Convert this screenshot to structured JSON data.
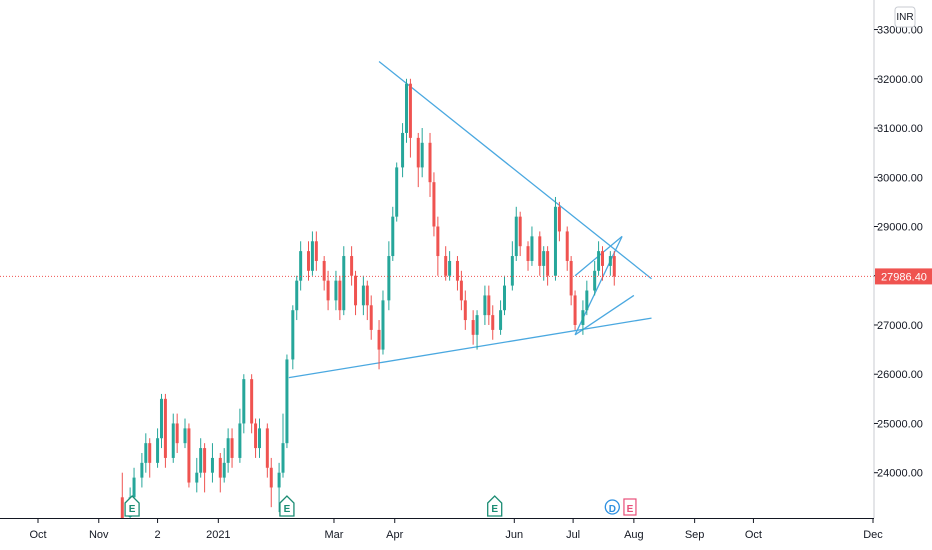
{
  "chart_data": {
    "type": "candlestick",
    "currency": "INR",
    "last_price": "27986.40",
    "y_ticks": [
      "33000.00",
      "32000.00",
      "31000.00",
      "30000.00",
      "29000.00",
      "28000.00",
      "27000.00",
      "26000.00",
      "25000.00",
      "24000.00"
    ],
    "y_tick_values": [
      33000,
      32000,
      31000,
      30000,
      29000,
      28000,
      27000,
      26000,
      25000,
      24000
    ],
    "ylim": [
      23080,
      33600
    ],
    "x_ticks": [
      {
        "label": "Oct",
        "date": "2020-10-01"
      },
      {
        "label": "Nov",
        "date": "2020-11-01"
      },
      {
        "label": "2",
        "date": "2020-12-01"
      },
      {
        "label": "2021",
        "date": "2021-01-01"
      },
      {
        "label": "Mar",
        "date": "2021-03-01"
      },
      {
        "label": "Apr",
        "date": "2021-04-01"
      },
      {
        "label": "Jun",
        "date": "2021-06-01"
      },
      {
        "label": "Jul",
        "date": "2021-07-01"
      },
      {
        "label": "Aug",
        "date": "2021-08-01"
      },
      {
        "label": "Sep",
        "date": "2021-09-01"
      },
      {
        "label": "Oct",
        "date": "2021-10-01"
      },
      {
        "label": "Dec",
        "date": "2021-12-01"
      }
    ],
    "colors": {
      "up": "#26a69a",
      "down": "#ef5350",
      "trendline": "#4aa8e0",
      "last_price": "#ef5350",
      "event_earnings": "#1b8c73",
      "event_dividend": "#2c8fe0",
      "event_upcoming": "#e84f7a"
    },
    "candles": [
      [
        "2020-11-13",
        23500,
        23000,
        24000,
        23000
      ],
      [
        "2020-11-17",
        23100,
        23500,
        23700,
        23050
      ],
      [
        "2020-11-19",
        23500,
        23900,
        24100,
        23300
      ],
      [
        "2020-11-23",
        23900,
        24200,
        24400,
        23700
      ],
      [
        "2020-11-25",
        24200,
        24600,
        24800,
        24000
      ],
      [
        "2020-11-27",
        24600,
        24200,
        24700,
        23900
      ],
      [
        "2020-12-01",
        24200,
        24700,
        24900,
        24100
      ],
      [
        "2020-12-03",
        24700,
        25500,
        25600,
        24500
      ],
      [
        "2020-12-05",
        25500,
        24300,
        25600,
        24100
      ],
      [
        "2020-12-09",
        24300,
        25000,
        25200,
        24200
      ],
      [
        "2020-12-11",
        25000,
        24600,
        25200,
        24400
      ],
      [
        "2020-12-15",
        24600,
        24900,
        25100,
        24500
      ],
      [
        "2020-12-17",
        24900,
        23800,
        25000,
        23700
      ],
      [
        "2020-12-21",
        23800,
        24000,
        24300,
        23600
      ],
      [
        "2020-12-23",
        24000,
        24500,
        24700,
        23900
      ],
      [
        "2020-12-25",
        24500,
        24000,
        24600,
        23600
      ],
      [
        "2020-12-29",
        24000,
        24300,
        24600,
        23800
      ],
      [
        "2021-01-02",
        24300,
        23900,
        24400,
        23600
      ],
      [
        "2021-01-04",
        23900,
        24200,
        24500,
        23800
      ],
      [
        "2021-01-06",
        24200,
        24700,
        24900,
        24000
      ],
      [
        "2021-01-08",
        24700,
        24300,
        24900,
        24100
      ],
      [
        "2021-01-12",
        24300,
        25000,
        25300,
        24200
      ],
      [
        "2021-01-14",
        25000,
        25900,
        26000,
        24800
      ],
      [
        "2021-01-18",
        25900,
        25000,
        26000,
        24800
      ],
      [
        "2021-01-20",
        25000,
        24500,
        25100,
        24300
      ],
      [
        "2021-01-22",
        24500,
        24900,
        25100,
        24300
      ],
      [
        "2021-01-26",
        24900,
        24100,
        25000,
        23900
      ],
      [
        "2021-01-28",
        24100,
        23700,
        24300,
        23300
      ],
      [
        "2021-02-01",
        23700,
        24000,
        24200,
        23200
      ],
      [
        "2021-02-03",
        24000,
        24600,
        25200,
        23900
      ],
      [
        "2021-02-05",
        24600,
        26300,
        26400,
        24500
      ],
      [
        "2021-02-08",
        26300,
        27300,
        27400,
        26100
      ],
      [
        "2021-02-10",
        27300,
        27900,
        28000,
        27100
      ],
      [
        "2021-02-12",
        27900,
        28500,
        28700,
        27700
      ],
      [
        "2021-02-16",
        28500,
        28100,
        28700,
        27900
      ],
      [
        "2021-02-18",
        28100,
        28700,
        28900,
        28000
      ],
      [
        "2021-02-20",
        28700,
        28300,
        28900,
        28100
      ],
      [
        "2021-02-24",
        28300,
        27900,
        28400,
        27700
      ],
      [
        "2021-02-26",
        27900,
        27500,
        28100,
        27300
      ],
      [
        "2021-03-02",
        27500,
        27900,
        28100,
        27300
      ],
      [
        "2021-03-04",
        27900,
        27300,
        28000,
        27100
      ],
      [
        "2021-03-06",
        27300,
        28400,
        28600,
        27200
      ],
      [
        "2021-03-10",
        28400,
        28000,
        28600,
        27800
      ],
      [
        "2021-03-12",
        28000,
        27400,
        28100,
        27200
      ],
      [
        "2021-03-16",
        27400,
        27800,
        28000,
        27200
      ],
      [
        "2021-03-18",
        27800,
        27400,
        27900,
        27100
      ],
      [
        "2021-03-20",
        27400,
        26900,
        27600,
        26700
      ],
      [
        "2021-03-24",
        26900,
        26500,
        27100,
        26100
      ],
      [
        "2021-03-26",
        26500,
        27500,
        27700,
        26400
      ],
      [
        "2021-03-29",
        27500,
        28400,
        28700,
        27300
      ],
      [
        "2021-03-31",
        28400,
        29200,
        29400,
        28300
      ],
      [
        "2021-04-02",
        29200,
        30200,
        30300,
        29100
      ],
      [
        "2021-04-05",
        30200,
        30900,
        31100,
        30000
      ],
      [
        "2021-04-07",
        30900,
        31900,
        32000,
        30700
      ],
      [
        "2021-04-09",
        31900,
        30800,
        32000,
        30400
      ],
      [
        "2021-04-13",
        30800,
        30200,
        30900,
        29800
      ],
      [
        "2021-04-15",
        30200,
        30700,
        31000,
        30000
      ],
      [
        "2021-04-19",
        30700,
        29900,
        30900,
        29600
      ],
      [
        "2021-04-21",
        29900,
        29000,
        30100,
        28800
      ],
      [
        "2021-04-23",
        29000,
        28400,
        29200,
        28000
      ],
      [
        "2021-04-27",
        28400,
        28000,
        28600,
        27900
      ],
      [
        "2021-04-29",
        28000,
        28300,
        28500,
        27900
      ],
      [
        "2021-05-03",
        28300,
        27900,
        28400,
        27700
      ],
      [
        "2021-05-05",
        27900,
        27500,
        28100,
        27300
      ],
      [
        "2021-05-07",
        27500,
        27100,
        27700,
        26900
      ],
      [
        "2021-05-11",
        27100,
        26800,
        27300,
        26600
      ],
      [
        "2021-05-13",
        26800,
        27200,
        27300,
        26500
      ],
      [
        "2021-05-17",
        27200,
        27600,
        27800,
        27000
      ],
      [
        "2021-05-19",
        27600,
        27200,
        27800,
        27000
      ],
      [
        "2021-05-21",
        27200,
        26900,
        27400,
        26700
      ],
      [
        "2021-05-25",
        26900,
        27300,
        27500,
        26800
      ],
      [
        "2021-05-27",
        27300,
        27800,
        28000,
        27200
      ],
      [
        "2021-05-31",
        27800,
        28400,
        28700,
        27700
      ],
      [
        "2021-06-02",
        28400,
        29200,
        29400,
        28300
      ],
      [
        "2021-06-04",
        29200,
        28600,
        29300,
        28400
      ],
      [
        "2021-06-08",
        28600,
        28300,
        28700,
        28100
      ],
      [
        "2021-06-10",
        28300,
        28800,
        29000,
        28200
      ],
      [
        "2021-06-14",
        28800,
        28200,
        28900,
        28000
      ],
      [
        "2021-06-16",
        28200,
        28500,
        28600,
        27900
      ],
      [
        "2021-06-18",
        28500,
        28000,
        28600,
        27800
      ],
      [
        "2021-06-22",
        28000,
        29400,
        29600,
        27900
      ],
      [
        "2021-06-24",
        29400,
        28900,
        29500,
        28700
      ],
      [
        "2021-06-28",
        28900,
        28300,
        29000,
        28100
      ],
      [
        "2021-06-30",
        28300,
        27600,
        28400,
        27400
      ],
      [
        "2021-07-02",
        27600,
        27000,
        27700,
        26900
      ],
      [
        "2021-07-06",
        27000,
        27300,
        27500,
        26800
      ],
      [
        "2021-07-08",
        27300,
        27700,
        27900,
        27200
      ],
      [
        "2021-07-12",
        27700,
        28100,
        28300,
        27600
      ],
      [
        "2021-07-14",
        28100,
        28500,
        28700,
        28000
      ],
      [
        "2021-07-16",
        28500,
        28200,
        28600,
        27900
      ],
      [
        "2021-07-20",
        28200,
        28400,
        28500,
        28000
      ],
      [
        "2021-07-22",
        28400,
        27986,
        28500,
        27800
      ]
    ],
    "trendlines": [
      {
        "points": [
          [
            "2021-03-24",
            32350
          ],
          [
            "2021-08-10",
            27940
          ]
        ]
      },
      {
        "points": [
          [
            "2021-02-06",
            25930
          ],
          [
            "2021-08-10",
            27140
          ]
        ]
      },
      {
        "points": [
          [
            "2021-07-02",
            26800
          ],
          [
            "2021-07-26",
            28800
          ]
        ]
      },
      {
        "points": [
          [
            "2021-07-02",
            28000
          ],
          [
            "2021-07-26",
            28800
          ]
        ]
      },
      {
        "points": [
          [
            "2021-07-02",
            26800
          ],
          [
            "2021-08-01",
            27600
          ]
        ]
      }
    ],
    "events": [
      {
        "date": "2020-11-18",
        "letter": "E",
        "kind": "earnings"
      },
      {
        "date": "2021-02-05",
        "letter": "E",
        "kind": "earnings"
      },
      {
        "date": "2021-05-22",
        "letter": "E",
        "kind": "earnings"
      },
      {
        "date": "2021-07-21",
        "letter": "D",
        "kind": "dividend"
      },
      {
        "date": "2021-07-30",
        "letter": "E",
        "kind": "upcoming"
      }
    ]
  }
}
